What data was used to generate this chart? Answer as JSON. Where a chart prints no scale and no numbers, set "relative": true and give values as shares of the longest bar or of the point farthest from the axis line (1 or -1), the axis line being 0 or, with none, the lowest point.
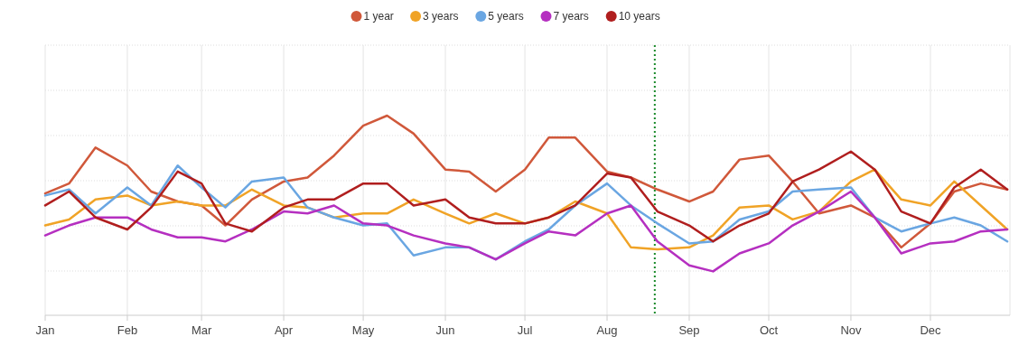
{
  "chart_data": {
    "type": "line",
    "relative": true,
    "grid": true,
    "legend": "top",
    "x": [
      "--01-01",
      "--01-10",
      "--01-20",
      "--02-01",
      "--02-10",
      "--02-20",
      "--03-01",
      "--03-10",
      "--03-20",
      "--04-01",
      "--04-10",
      "--04-20",
      "--05-01",
      "--05-10",
      "--05-20",
      "--06-01",
      "--06-10",
      "--06-20",
      "--07-01",
      "--07-10",
      "--07-20",
      "--08-01",
      "--08-10",
      "--08-20",
      "--09-01",
      "--09-10",
      "--09-20",
      "--10-01",
      "--10-10",
      "--10-20",
      "--11-01",
      "--11-10",
      "--11-20",
      "--12-01",
      "--12-10",
      "--12-20",
      "--12-30"
    ],
    "xlim": [
      "--01-01",
      "--12-31"
    ],
    "xticks": [
      {
        "value": "--01-01",
        "label": "Jan"
      },
      {
        "value": "--02-01",
        "label": "Feb"
      },
      {
        "value": "--03-01",
        "label": "Mar"
      },
      {
        "value": "--04-01",
        "label": "Apr"
      },
      {
        "value": "--05-01",
        "label": "May"
      },
      {
        "value": "--06-01",
        "label": "Jun"
      },
      {
        "value": "--07-01",
        "label": "Jul"
      },
      {
        "value": "--08-01",
        "label": "Aug"
      },
      {
        "value": "--09-01",
        "label": "Sep"
      },
      {
        "value": "--10-01",
        "label": "Oct"
      },
      {
        "value": "--11-01",
        "label": "Nov"
      },
      {
        "value": "--12-01",
        "label": "Dec"
      }
    ],
    "ref_lines": [
      {
        "axis": "x",
        "value": "--08-19",
        "color": "#1a8a2a",
        "line_style": "dotted"
      }
    ],
    "series": [
      {
        "name": "1 year",
        "color": "#d0583a",
        "values": [
          0.61,
          0.66,
          0.84,
          0.75,
          0.62,
          0.57,
          0.55,
          0.45,
          0.58,
          0.67,
          0.69,
          0.8,
          0.95,
          1,
          0.91,
          0.73,
          0.72,
          0.62,
          0.73,
          0.89,
          0.89,
          0.72,
          0.69,
          0.63,
          0.57,
          0.62,
          0.78,
          0.8,
          0.67,
          0.51,
          0.55,
          0.49,
          0.34,
          0.46,
          0.62,
          0.66,
          0.63
        ]
      },
      {
        "name": "3 years",
        "color": "#f0a326",
        "values": [
          0.45,
          0.48,
          0.58,
          0.6,
          0.55,
          0.57,
          0.55,
          0.55,
          0.63,
          0.55,
          0.54,
          0.49,
          0.51,
          0.51,
          0.58,
          0.51,
          0.46,
          0.51,
          0.46,
          0.49,
          0.57,
          0.51,
          0.34,
          0.33,
          0.34,
          0.4,
          0.54,
          0.55,
          0.48,
          0.52,
          0.67,
          0.73,
          0.58,
          0.55,
          0.67,
          0.55,
          0.43
        ]
      },
      {
        "name": "5 years",
        "color": "#6aa6e2",
        "values": [
          0.6,
          0.63,
          0.51,
          0.64,
          0.55,
          0.75,
          0.64,
          0.54,
          0.67,
          0.69,
          0.54,
          0.49,
          0.45,
          0.46,
          0.3,
          0.34,
          0.34,
          0.28,
          0.37,
          0.43,
          0.55,
          0.66,
          0.55,
          0.46,
          0.36,
          0.37,
          0.48,
          0.52,
          0.62,
          0.63,
          0.64,
          0.49,
          0.42,
          0.46,
          0.49,
          0.45,
          0.37
        ]
      },
      {
        "name": "7 years",
        "color": "#b52fc0",
        "values": [
          0.4,
          0.45,
          0.49,
          0.49,
          0.43,
          0.39,
          0.39,
          0.37,
          0.43,
          0.52,
          0.51,
          0.55,
          0.46,
          0.45,
          0.4,
          0.36,
          0.34,
          0.28,
          0.36,
          0.42,
          0.4,
          0.51,
          0.55,
          0.37,
          0.25,
          0.22,
          0.31,
          0.36,
          0.45,
          0.52,
          0.62,
          0.49,
          0.31,
          0.36,
          0.37,
          0.42,
          0.43
        ]
      },
      {
        "name": "10 years",
        "color": "#b01e1e",
        "values": [
          0.55,
          0.62,
          0.49,
          0.43,
          0.54,
          0.72,
          0.66,
          0.46,
          0.42,
          0.54,
          0.58,
          0.58,
          0.66,
          0.66,
          0.55,
          0.58,
          0.49,
          0.46,
          0.46,
          0.49,
          0.55,
          0.71,
          0.69,
          0.52,
          0.45,
          0.37,
          0.45,
          0.51,
          0.67,
          0.73,
          0.82,
          0.73,
          0.52,
          0.46,
          0.64,
          0.73,
          0.63
        ]
      }
    ]
  }
}
